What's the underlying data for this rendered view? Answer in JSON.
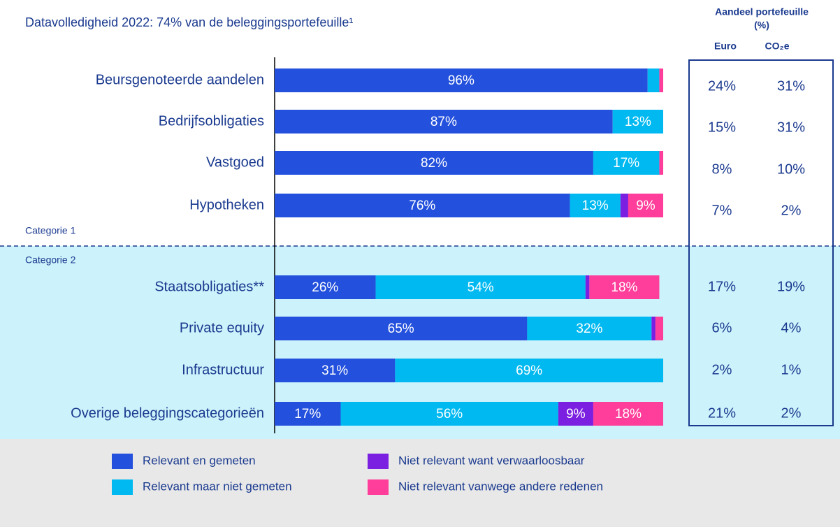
{
  "chart_data": {
    "type": "stacked-bar",
    "orientation": "horizontal",
    "title": "Datavolledigheid 2022: 74% van de beleggingsportefeuille¹",
    "categories": [
      "Beursgenoteerde aandelen",
      "Bedrijfsobligaties",
      "Vastgoed",
      "Hypotheken",
      "Staatsobligaties**",
      "Private equity",
      "Infrastructuur",
      "Overige beleggingscategorieën"
    ],
    "group_labels": [
      "Categorie 1",
      "Categorie 2"
    ],
    "xlim": [
      0,
      100
    ],
    "series": [
      {
        "name": "Relevant en gemeten",
        "color": "#2350dc",
        "values": [
          96,
          87,
          82,
          76,
          26,
          65,
          31,
          17
        ],
        "value_labels": [
          "96%",
          "87%",
          "82%",
          "76%",
          "26%",
          "65%",
          "31%",
          "17%"
        ]
      },
      {
        "name": "Relevant maar niet gemeten",
        "color": "#00b9f1",
        "values": [
          3,
          13,
          17,
          13,
          54,
          32,
          69,
          56
        ],
        "value_labels": [
          null,
          "13%",
          "17%",
          "13%",
          "54%",
          "32%",
          "69%",
          "56%"
        ]
      },
      {
        "name": "Niet relevant want verwaarloosbaar",
        "color": "#7b1fe0",
        "values": [
          0,
          0,
          0,
          2,
          1,
          1,
          0,
          9
        ],
        "value_labels": [
          null,
          null,
          null,
          null,
          null,
          null,
          null,
          "9%"
        ]
      },
      {
        "name": "Niet relevant vanwege andere redenen",
        "color": "#ff3d9a",
        "values": [
          1,
          0,
          1,
          9,
          18,
          2,
          0,
          18
        ],
        "value_labels": [
          null,
          null,
          null,
          "9%",
          "18%",
          null,
          null,
          "18%"
        ]
      }
    ],
    "table": {
      "header": "Aandeel portefeuille",
      "unit": "(%)",
      "columns": [
        "Euro",
        "CO₂e"
      ],
      "rows": [
        [
          "24%",
          "31%"
        ],
        [
          "15%",
          "31%"
        ],
        [
          "8%",
          "10%"
        ],
        [
          "7%",
          "2%"
        ],
        [
          "17%",
          "19%"
        ],
        [
          "6%",
          "4%"
        ],
        [
          "2%",
          "1%"
        ],
        [
          "21%",
          "2%"
        ]
      ]
    }
  }
}
